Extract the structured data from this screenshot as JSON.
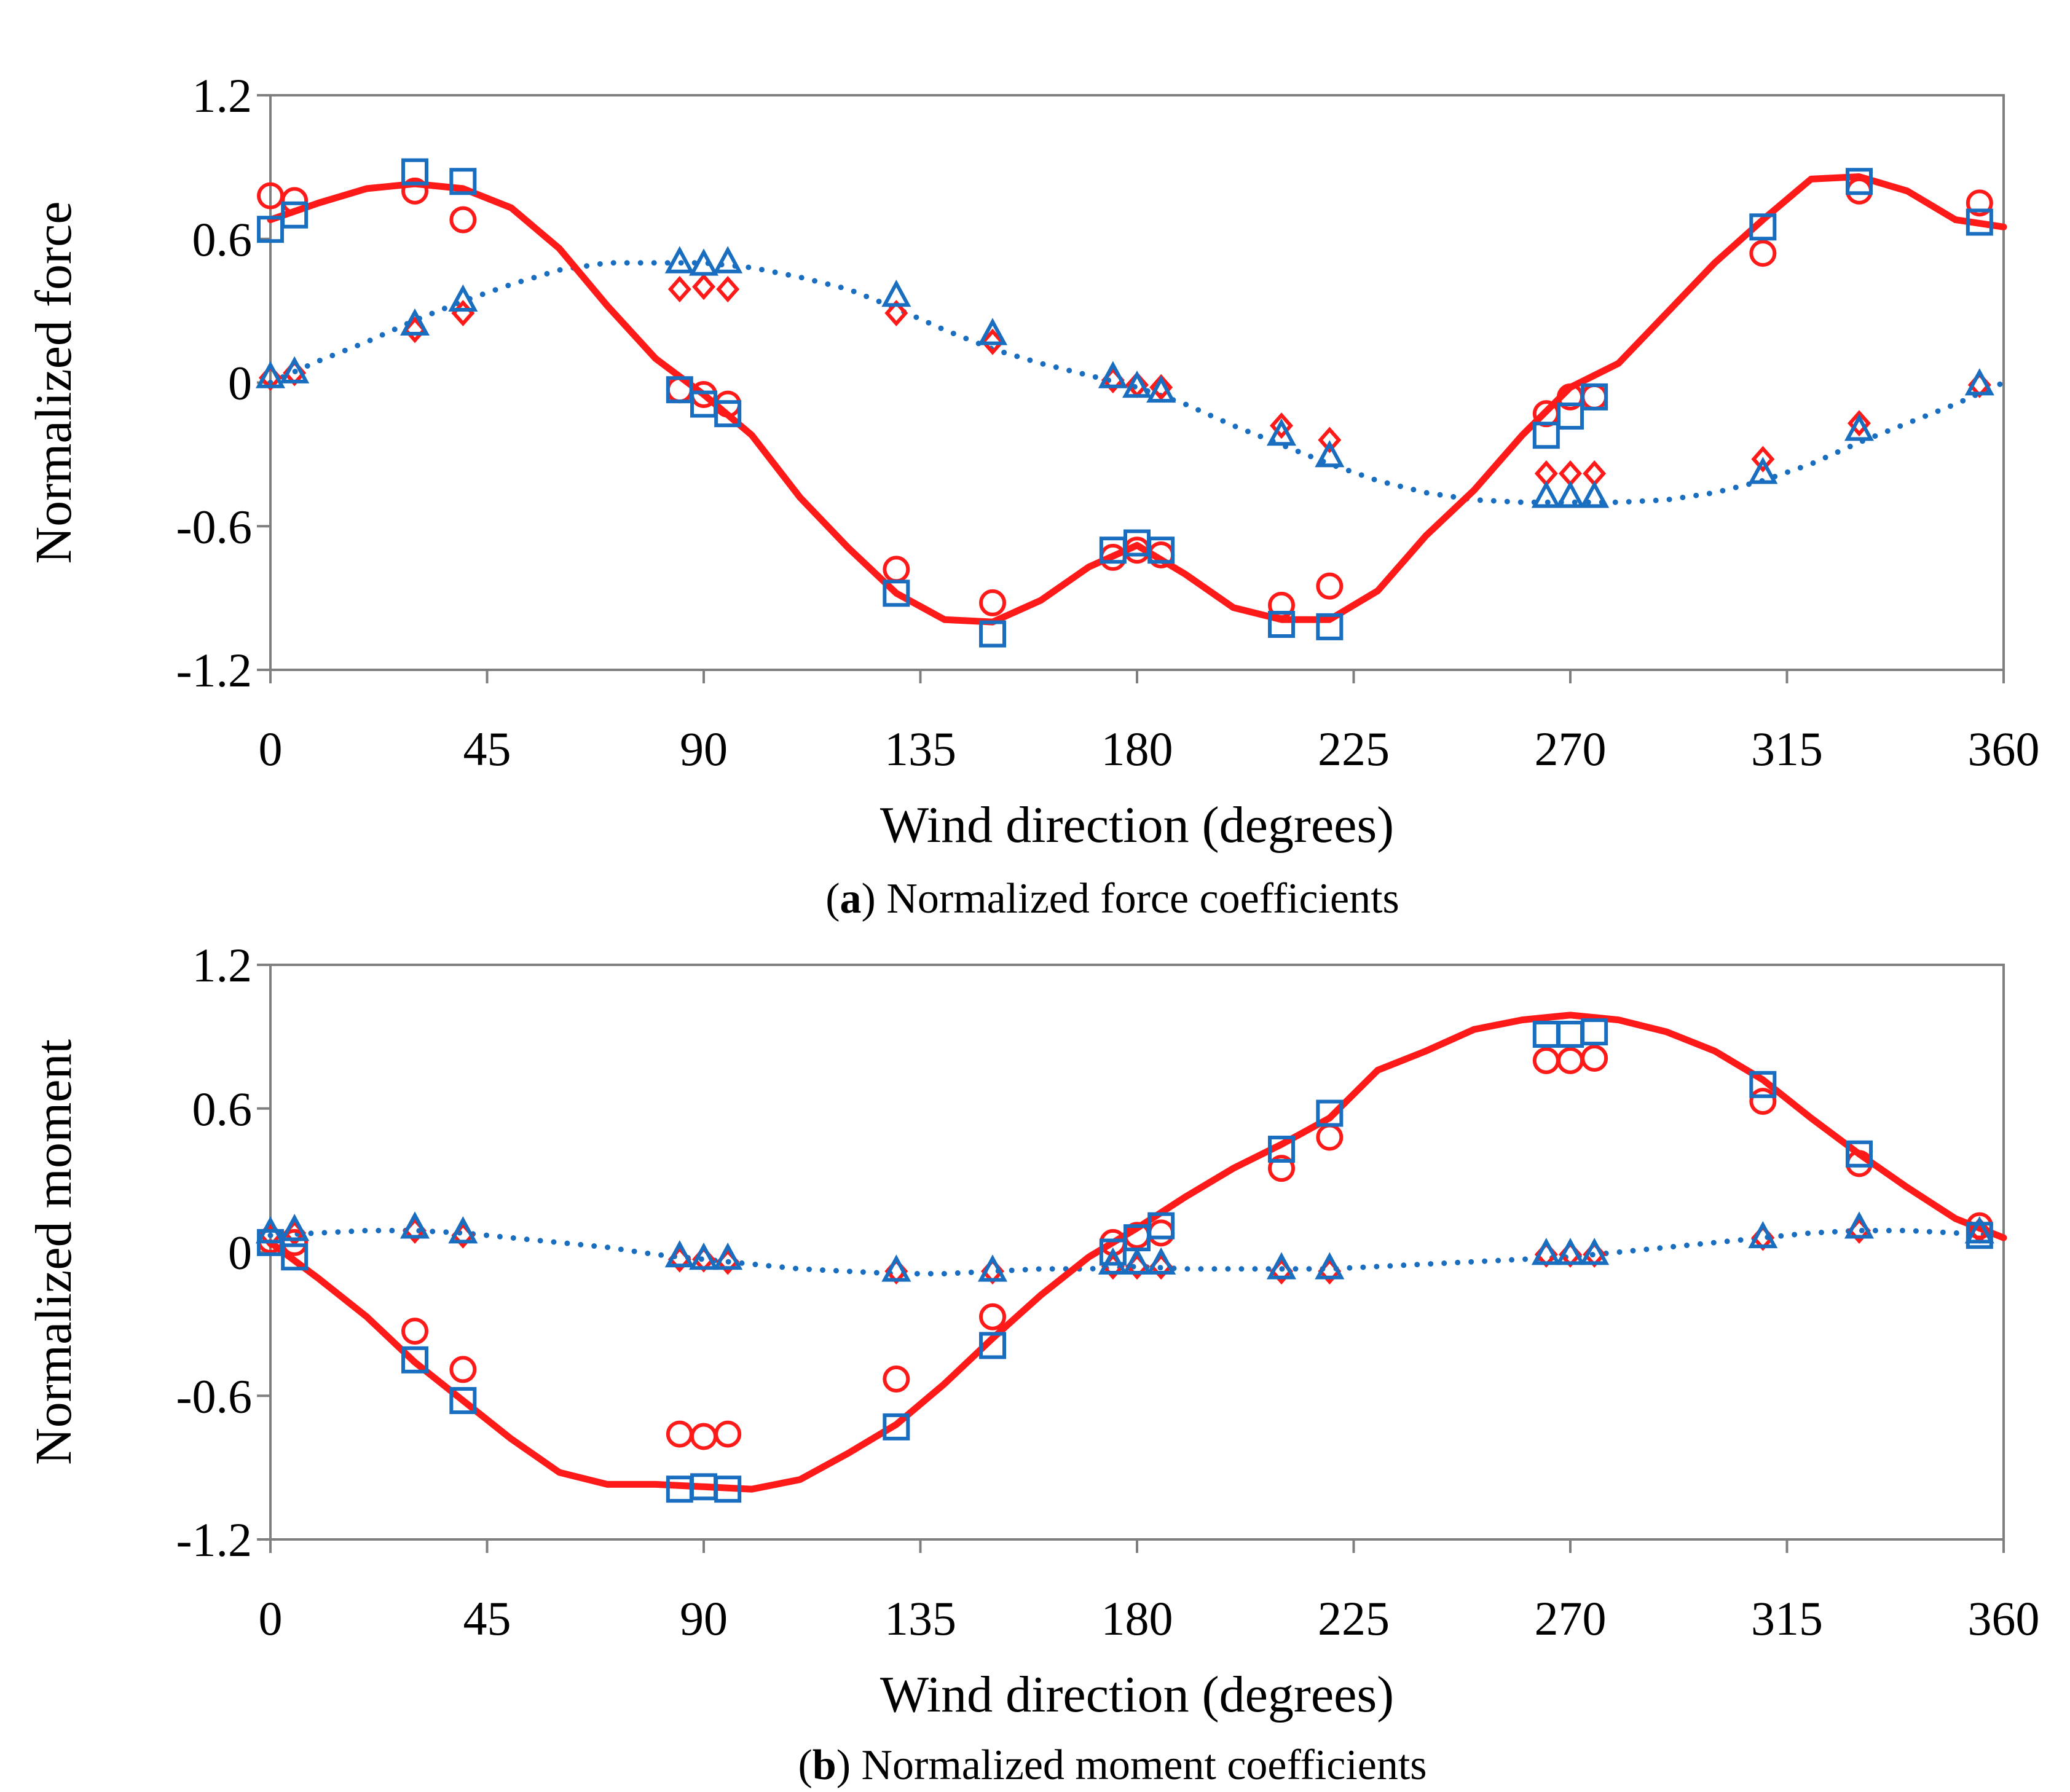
{
  "chart_data": [
    {
      "type": "line+scatter",
      "panel": "a",
      "caption_letter": "a",
      "caption_text": ") Normalized force coefficients",
      "caption_open": "(",
      "xlabel": "Wind direction (degrees)",
      "ylabel": "Normalized  force",
      "xlim": [
        0,
        360
      ],
      "ylim": [
        -1.2,
        1.2
      ],
      "xticks": [
        0,
        45,
        90,
        135,
        180,
        225,
        270,
        315,
        360
      ],
      "yticks": [
        "1.2",
        "0.6",
        "0",
        "-0.6",
        "-1.2"
      ],
      "ytick_values": [
        1.2,
        0.6,
        0,
        -0.6,
        -1.2
      ],
      "series": [
        {
          "name": "red-solid-line",
          "style": "line-solid",
          "color": "#ff1a1a",
          "x": [
            0,
            10,
            20,
            30,
            40,
            50,
            60,
            70,
            80,
            90,
            100,
            110,
            120,
            130,
            140,
            150,
            160,
            170,
            180,
            190,
            200,
            210,
            220,
            230,
            240,
            250,
            260,
            270,
            280,
            290,
            300,
            310,
            320,
            330,
            340,
            350,
            360
          ],
          "y": [
            0.68,
            0.75,
            0.81,
            0.83,
            0.81,
            0.73,
            0.56,
            0.32,
            0.1,
            -0.05,
            -0.22,
            -0.48,
            -0.69,
            -0.88,
            -0.99,
            -1.0,
            -0.91,
            -0.77,
            -0.68,
            -0.8,
            -0.94,
            -0.99,
            -0.99,
            -0.87,
            -0.64,
            -0.45,
            -0.22,
            -0.02,
            0.08,
            0.29,
            0.5,
            0.68,
            0.85,
            0.86,
            0.8,
            0.68,
            0.65
          ]
        },
        {
          "name": "blue-dotted-line",
          "style": "line-dotted",
          "color": "#1a6ebf",
          "x": [
            0,
            10,
            20,
            30,
            40,
            50,
            60,
            70,
            80,
            90,
            100,
            110,
            120,
            130,
            140,
            150,
            160,
            170,
            180,
            190,
            200,
            210,
            220,
            230,
            240,
            250,
            260,
            270,
            280,
            290,
            300,
            310,
            320,
            330,
            340,
            350,
            360
          ],
          "y": [
            0.0,
            0.09,
            0.17,
            0.26,
            0.34,
            0.41,
            0.47,
            0.5,
            0.5,
            0.5,
            0.48,
            0.44,
            0.39,
            0.31,
            0.22,
            0.14,
            0.08,
            0.03,
            -0.02,
            -0.09,
            -0.18,
            -0.26,
            -0.34,
            -0.41,
            -0.46,
            -0.49,
            -0.5,
            -0.5,
            -0.5,
            -0.49,
            -0.46,
            -0.41,
            -0.34,
            -0.25,
            -0.17,
            -0.09,
            0.0
          ]
        },
        {
          "name": "red-circles",
          "style": "circle",
          "color": "#ff1a1a",
          "x": [
            0,
            5,
            30,
            40,
            85,
            90,
            95,
            130,
            150,
            175,
            180,
            185,
            210,
            220,
            265,
            270,
            275,
            310,
            330,
            355
          ],
          "y": [
            0.78,
            0.76,
            0.8,
            0.68,
            -0.03,
            -0.05,
            -0.09,
            -0.78,
            -0.92,
            -0.73,
            -0.7,
            -0.72,
            -0.93,
            -0.85,
            -0.13,
            -0.06,
            -0.06,
            0.54,
            0.8,
            0.75
          ]
        },
        {
          "name": "blue-squares",
          "style": "square",
          "color": "#1a6ebf",
          "x": [
            0,
            5,
            30,
            40,
            85,
            90,
            95,
            130,
            150,
            175,
            180,
            185,
            210,
            220,
            265,
            270,
            275,
            310,
            330,
            355
          ],
          "y": [
            0.64,
            0.7,
            0.88,
            0.84,
            -0.03,
            -0.09,
            -0.13,
            -0.88,
            -1.05,
            -0.7,
            -0.67,
            -0.7,
            -1.01,
            -1.02,
            -0.22,
            -0.14,
            -0.06,
            0.65,
            0.84,
            0.67
          ]
        },
        {
          "name": "red-diamonds",
          "style": "diamond",
          "color": "#ff1a1a",
          "x": [
            0,
            5,
            30,
            40,
            85,
            90,
            95,
            130,
            150,
            175,
            180,
            185,
            210,
            220,
            265,
            270,
            275,
            310,
            330,
            355
          ],
          "y": [
            0.02,
            0.04,
            0.22,
            0.29,
            0.39,
            0.4,
            0.39,
            0.29,
            0.17,
            0.01,
            -0.01,
            -0.02,
            -0.18,
            -0.24,
            -0.38,
            -0.38,
            -0.38,
            -0.32,
            -0.17,
            -0.01
          ]
        },
        {
          "name": "blue-triangles",
          "style": "triangle",
          "color": "#1a6ebf",
          "x": [
            0,
            5,
            30,
            40,
            85,
            90,
            95,
            130,
            150,
            175,
            180,
            185,
            210,
            220,
            265,
            270,
            275,
            310,
            330,
            355
          ],
          "y": [
            0.02,
            0.04,
            0.24,
            0.34,
            0.5,
            0.49,
            0.5,
            0.36,
            0.2,
            0.02,
            -0.02,
            -0.04,
            -0.22,
            -0.31,
            -0.48,
            -0.48,
            -0.48,
            -0.38,
            -0.2,
            -0.01
          ]
        }
      ]
    },
    {
      "type": "line+scatter",
      "panel": "b",
      "caption_letter": "b",
      "caption_text": ") Normalized moment coefficients",
      "caption_open": "(",
      "xlabel": "Wind direction (degrees)",
      "ylabel": "Normalized  moment",
      "xlim": [
        0,
        360
      ],
      "ylim": [
        -1.2,
        1.2
      ],
      "xticks": [
        0,
        45,
        90,
        135,
        180,
        225,
        270,
        315,
        360
      ],
      "yticks": [
        "1.2",
        "0.6",
        "0",
        "-0.6",
        "-1.2"
      ],
      "ytick_values": [
        1.2,
        0.6,
        0,
        -0.6,
        -1.2
      ],
      "series": [
        {
          "name": "red-solid-line",
          "style": "line-solid",
          "color": "#ff1a1a",
          "x": [
            0,
            10,
            20,
            30,
            40,
            50,
            60,
            70,
            80,
            90,
            100,
            110,
            120,
            130,
            140,
            150,
            160,
            170,
            180,
            190,
            200,
            210,
            220,
            230,
            240,
            250,
            260,
            270,
            280,
            290,
            300,
            310,
            320,
            330,
            340,
            350,
            360
          ],
          "y": [
            0.04,
            -0.11,
            -0.27,
            -0.46,
            -0.62,
            -0.78,
            -0.92,
            -0.97,
            -0.97,
            -0.98,
            -0.99,
            -0.95,
            -0.84,
            -0.72,
            -0.55,
            -0.36,
            -0.18,
            -0.02,
            0.1,
            0.23,
            0.35,
            0.45,
            0.56,
            0.76,
            0.84,
            0.93,
            0.97,
            0.99,
            0.97,
            0.92,
            0.84,
            0.72,
            0.56,
            0.41,
            0.27,
            0.14,
            0.06
          ]
        },
        {
          "name": "blue-dotted-line",
          "style": "line-dotted",
          "color": "#1a6ebf",
          "x": [
            0,
            10,
            20,
            30,
            40,
            50,
            60,
            70,
            80,
            90,
            100,
            110,
            120,
            130,
            140,
            150,
            160,
            170,
            180,
            190,
            200,
            210,
            220,
            230,
            240,
            250,
            260,
            270,
            280,
            290,
            300,
            310,
            320,
            330,
            340,
            350,
            360
          ],
          "y": [
            0.07,
            0.08,
            0.09,
            0.09,
            0.08,
            0.06,
            0.04,
            0.02,
            -0.01,
            -0.03,
            -0.05,
            -0.07,
            -0.08,
            -0.09,
            -0.09,
            -0.08,
            -0.07,
            -0.07,
            -0.06,
            -0.07,
            -0.07,
            -0.07,
            -0.07,
            -0.06,
            -0.05,
            -0.04,
            -0.03,
            -0.02,
            0.0,
            0.02,
            0.04,
            0.06,
            0.08,
            0.09,
            0.09,
            0.08,
            0.07
          ]
        },
        {
          "name": "red-circles",
          "style": "circle",
          "color": "#ff1a1a",
          "x": [
            0,
            5,
            30,
            40,
            85,
            90,
            95,
            130,
            150,
            175,
            180,
            185,
            210,
            220,
            265,
            270,
            275,
            310,
            330,
            355
          ],
          "y": [
            0.05,
            0.04,
            -0.33,
            -0.49,
            -0.76,
            -0.77,
            -0.76,
            -0.53,
            -0.27,
            0.04,
            0.07,
            0.08,
            0.35,
            0.48,
            0.8,
            0.8,
            0.81,
            0.63,
            0.37,
            0.11
          ]
        },
        {
          "name": "blue-squares",
          "style": "square",
          "color": "#1a6ebf",
          "x": [
            0,
            5,
            30,
            40,
            85,
            90,
            95,
            130,
            150,
            175,
            180,
            185,
            210,
            220,
            265,
            270,
            275,
            310,
            330,
            355
          ],
          "y": [
            0.04,
            -0.02,
            -0.45,
            -0.62,
            -0.99,
            -0.98,
            -0.99,
            -0.73,
            -0.39,
            0.0,
            0.06,
            0.11,
            0.43,
            0.58,
            0.91,
            0.91,
            0.92,
            0.7,
            0.41,
            0.07
          ]
        },
        {
          "name": "red-diamonds",
          "style": "diamond",
          "color": "#ff1a1a",
          "x": [
            0,
            5,
            30,
            40,
            85,
            90,
            95,
            130,
            150,
            175,
            180,
            185,
            210,
            220,
            265,
            270,
            275,
            310,
            330,
            355
          ],
          "y": [
            0.07,
            0.08,
            0.09,
            0.07,
            -0.03,
            -0.03,
            -0.04,
            -0.08,
            -0.08,
            -0.06,
            -0.06,
            -0.06,
            -0.08,
            -0.08,
            -0.01,
            -0.01,
            -0.01,
            0.06,
            0.09,
            0.09
          ]
        },
        {
          "name": "blue-triangles",
          "style": "triangle",
          "color": "#1a6ebf",
          "x": [
            0,
            5,
            30,
            40,
            85,
            90,
            95,
            130,
            150,
            175,
            180,
            185,
            210,
            220,
            265,
            270,
            275,
            310,
            330,
            355
          ],
          "y": [
            0.08,
            0.09,
            0.1,
            0.08,
            -0.02,
            -0.03,
            -0.03,
            -0.08,
            -0.08,
            -0.05,
            -0.05,
            -0.05,
            -0.07,
            -0.07,
            -0.01,
            -0.01,
            -0.01,
            0.06,
            0.1,
            0.08
          ]
        }
      ]
    }
  ]
}
